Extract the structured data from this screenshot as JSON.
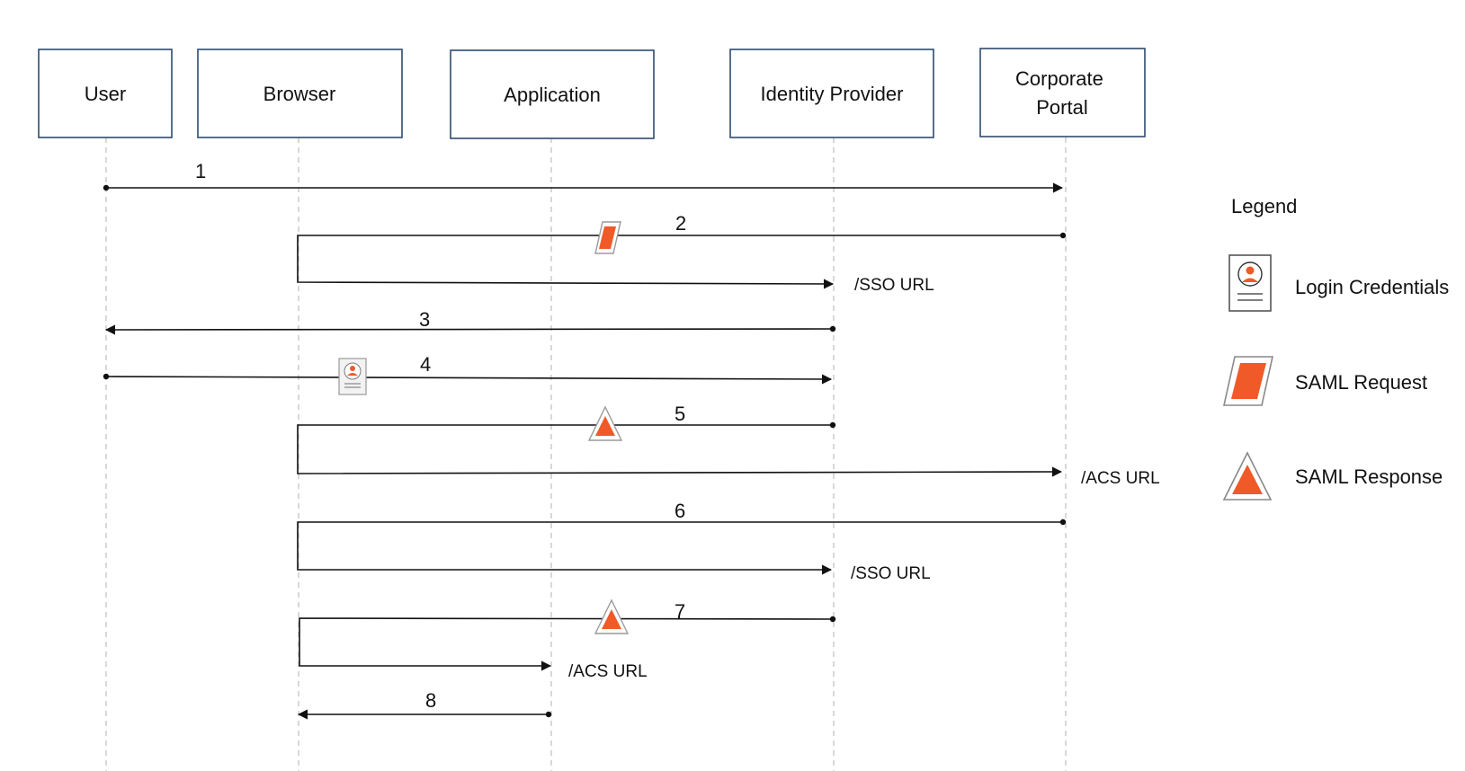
{
  "participants": [
    {
      "id": "user",
      "label": "User"
    },
    {
      "id": "browser",
      "label": "Browser"
    },
    {
      "id": "application",
      "label": "Application"
    },
    {
      "id": "idp",
      "label": "Identity Provider"
    },
    {
      "id": "portal",
      "label": "Corporate Portal",
      "lines": [
        "Corporate",
        "Portal"
      ]
    }
  ],
  "steps": [
    {
      "number": "1",
      "from": "user",
      "to": "portal"
    },
    {
      "number": "2",
      "from": "portal",
      "via": "browser",
      "to": "idp",
      "artifact": "saml-request",
      "endpoint": "/SSO URL"
    },
    {
      "number": "3",
      "from": "idp",
      "to": "user"
    },
    {
      "number": "4",
      "from": "user",
      "to": "idp",
      "artifact": "login-credentials"
    },
    {
      "number": "5",
      "from": "idp",
      "via": "browser",
      "to": "portal",
      "artifact": "saml-response",
      "endpoint": "/ACS URL"
    },
    {
      "number": "6",
      "from": "portal",
      "via": "browser",
      "to": "idp",
      "endpoint": "/SSO URL"
    },
    {
      "number": "7",
      "from": "idp",
      "via": "browser",
      "to": "application",
      "artifact": "saml-response",
      "endpoint": "/ACS URL"
    },
    {
      "number": "8",
      "from": "application",
      "to": "browser"
    }
  ],
  "legend": {
    "title": "Legend",
    "items": [
      {
        "icon": "login-credentials-icon",
        "label": "Login Credentials"
      },
      {
        "icon": "saml-request-icon",
        "label": "SAML Request"
      },
      {
        "icon": "saml-response-icon",
        "label": "SAML Response"
      }
    ]
  },
  "colors": {
    "accent": "#f05a28",
    "box_border": "#2f4b6e",
    "lifeline": "#bdbdbd",
    "line": "#111111"
  }
}
